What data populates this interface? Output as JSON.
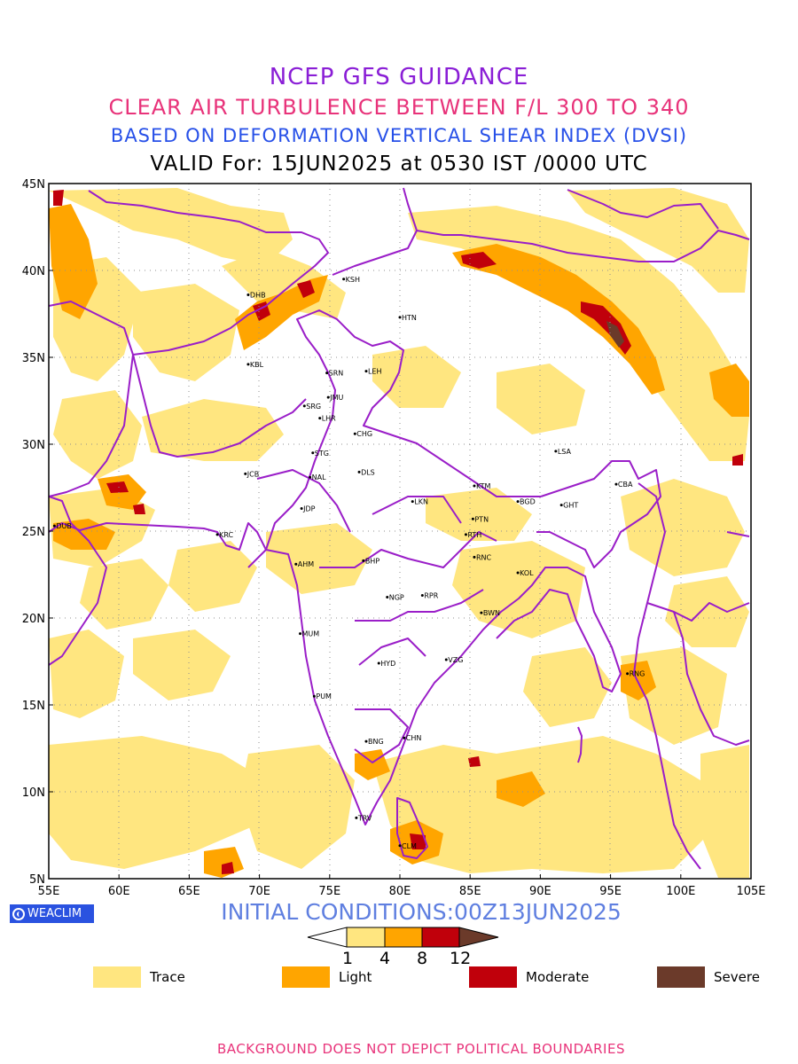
{
  "titles": {
    "line1": "NCEP GFS GUIDANCE",
    "line2": "CLEAR AIR TURBULENCE BETWEEN F/L 300 TO 340",
    "line3": "BASED ON DEFORMATION VERTICAL SHEAR INDEX (DVSI)",
    "line4": "VALID For: 15JUN2025 at 0530 IST /0000 UTC"
  },
  "map": {
    "lon_range": [
      55,
      105
    ],
    "lat_range": [
      5,
      45
    ],
    "lat_ticks": [
      "45N",
      "40N",
      "35N",
      "30N",
      "25N",
      "20N",
      "15N",
      "10N",
      "5N"
    ],
    "lon_ticks": [
      "55E",
      "60E",
      "65E",
      "70E",
      "75E",
      "80E",
      "85E",
      "90E",
      "95E",
      "100E",
      "105E"
    ],
    "gridlines": "dotted",
    "boundary_color": "#9a1ec8",
    "stations": [
      {
        "code": "KSH",
        "lon": 76.0,
        "lat": 39.5
      },
      {
        "code": "DHB",
        "lon": 69.2,
        "lat": 38.6
      },
      {
        "code": "HTN",
        "lon": 80.0,
        "lat": 37.3
      },
      {
        "code": "KBL",
        "lon": 69.2,
        "lat": 34.6
      },
      {
        "code": "SRN",
        "lon": 74.8,
        "lat": 34.1
      },
      {
        "code": "LEH",
        "lon": 77.6,
        "lat": 34.2
      },
      {
        "code": "JMU",
        "lon": 74.9,
        "lat": 32.7
      },
      {
        "code": "SRG",
        "lon": 73.2,
        "lat": 32.2
      },
      {
        "code": "LHR",
        "lon": 74.3,
        "lat": 31.5
      },
      {
        "code": "CHG",
        "lon": 76.8,
        "lat": 30.6
      },
      {
        "code": "STG",
        "lon": 73.8,
        "lat": 29.5
      },
      {
        "code": "LSA",
        "lon": 91.1,
        "lat": 29.6
      },
      {
        "code": "JCB",
        "lon": 69.0,
        "lat": 28.3
      },
      {
        "code": "NAL",
        "lon": 73.6,
        "lat": 28.1
      },
      {
        "code": "DLS",
        "lon": 77.1,
        "lat": 28.4
      },
      {
        "code": "KTM",
        "lon": 85.3,
        "lat": 27.6
      },
      {
        "code": "CBA",
        "lon": 95.4,
        "lat": 27.7
      },
      {
        "code": "BGD",
        "lon": 88.4,
        "lat": 26.7
      },
      {
        "code": "GHT",
        "lon": 91.5,
        "lat": 26.5
      },
      {
        "code": "LKN",
        "lon": 80.9,
        "lat": 26.7
      },
      {
        "code": "JDP",
        "lon": 73.0,
        "lat": 26.3
      },
      {
        "code": "PTN",
        "lon": 85.2,
        "lat": 25.7
      },
      {
        "code": "DUB",
        "lon": 55.4,
        "lat": 25.3
      },
      {
        "code": "KRC",
        "lon": 67.0,
        "lat": 24.8
      },
      {
        "code": "RTH",
        "lon": 84.7,
        "lat": 24.8
      },
      {
        "code": "AHM",
        "lon": 72.6,
        "lat": 23.1
      },
      {
        "code": "BHP",
        "lon": 77.4,
        "lat": 23.3
      },
      {
        "code": "RNC",
        "lon": 85.3,
        "lat": 23.5
      },
      {
        "code": "KOL",
        "lon": 88.4,
        "lat": 22.6
      },
      {
        "code": "NGP",
        "lon": 79.1,
        "lat": 21.2
      },
      {
        "code": "RPR",
        "lon": 81.6,
        "lat": 21.3
      },
      {
        "code": "BWN",
        "lon": 85.8,
        "lat": 20.3
      },
      {
        "code": "MUM",
        "lon": 72.9,
        "lat": 19.1
      },
      {
        "code": "HYD",
        "lon": 78.5,
        "lat": 17.4
      },
      {
        "code": "VZG",
        "lon": 83.3,
        "lat": 17.6
      },
      {
        "code": "RNG",
        "lon": 96.2,
        "lat": 16.8
      },
      {
        "code": "PUM",
        "lon": 73.9,
        "lat": 15.5
      },
      {
        "code": "CHN",
        "lon": 80.3,
        "lat": 13.1
      },
      {
        "code": "BNG",
        "lon": 77.6,
        "lat": 12.9
      },
      {
        "code": "TRV",
        "lon": 76.9,
        "lat": 8.5
      },
      {
        "code": "CLM",
        "lon": 80.0,
        "lat": 6.9
      }
    ]
  },
  "colorbar": {
    "levels": [
      "1",
      "4",
      "8",
      "12"
    ],
    "colors": [
      "#ffe680",
      "#ffa500",
      "#c0000b",
      "#6b3a2a"
    ]
  },
  "legend": [
    {
      "label": "Trace",
      "color": "#ffe680"
    },
    {
      "label": "Light",
      "color": "#ffa500"
    },
    {
      "label": "Moderate",
      "color": "#c0000b"
    },
    {
      "label": "Severe",
      "color": "#6b3a2a"
    }
  ],
  "badge_text": "WEACLIM",
  "initial_conditions": "INITIAL CONDITIONS:00Z13JUN2025",
  "footer": "BACKGROUND DOES NOT DEPICT POLITICAL BOUNDARIES"
}
